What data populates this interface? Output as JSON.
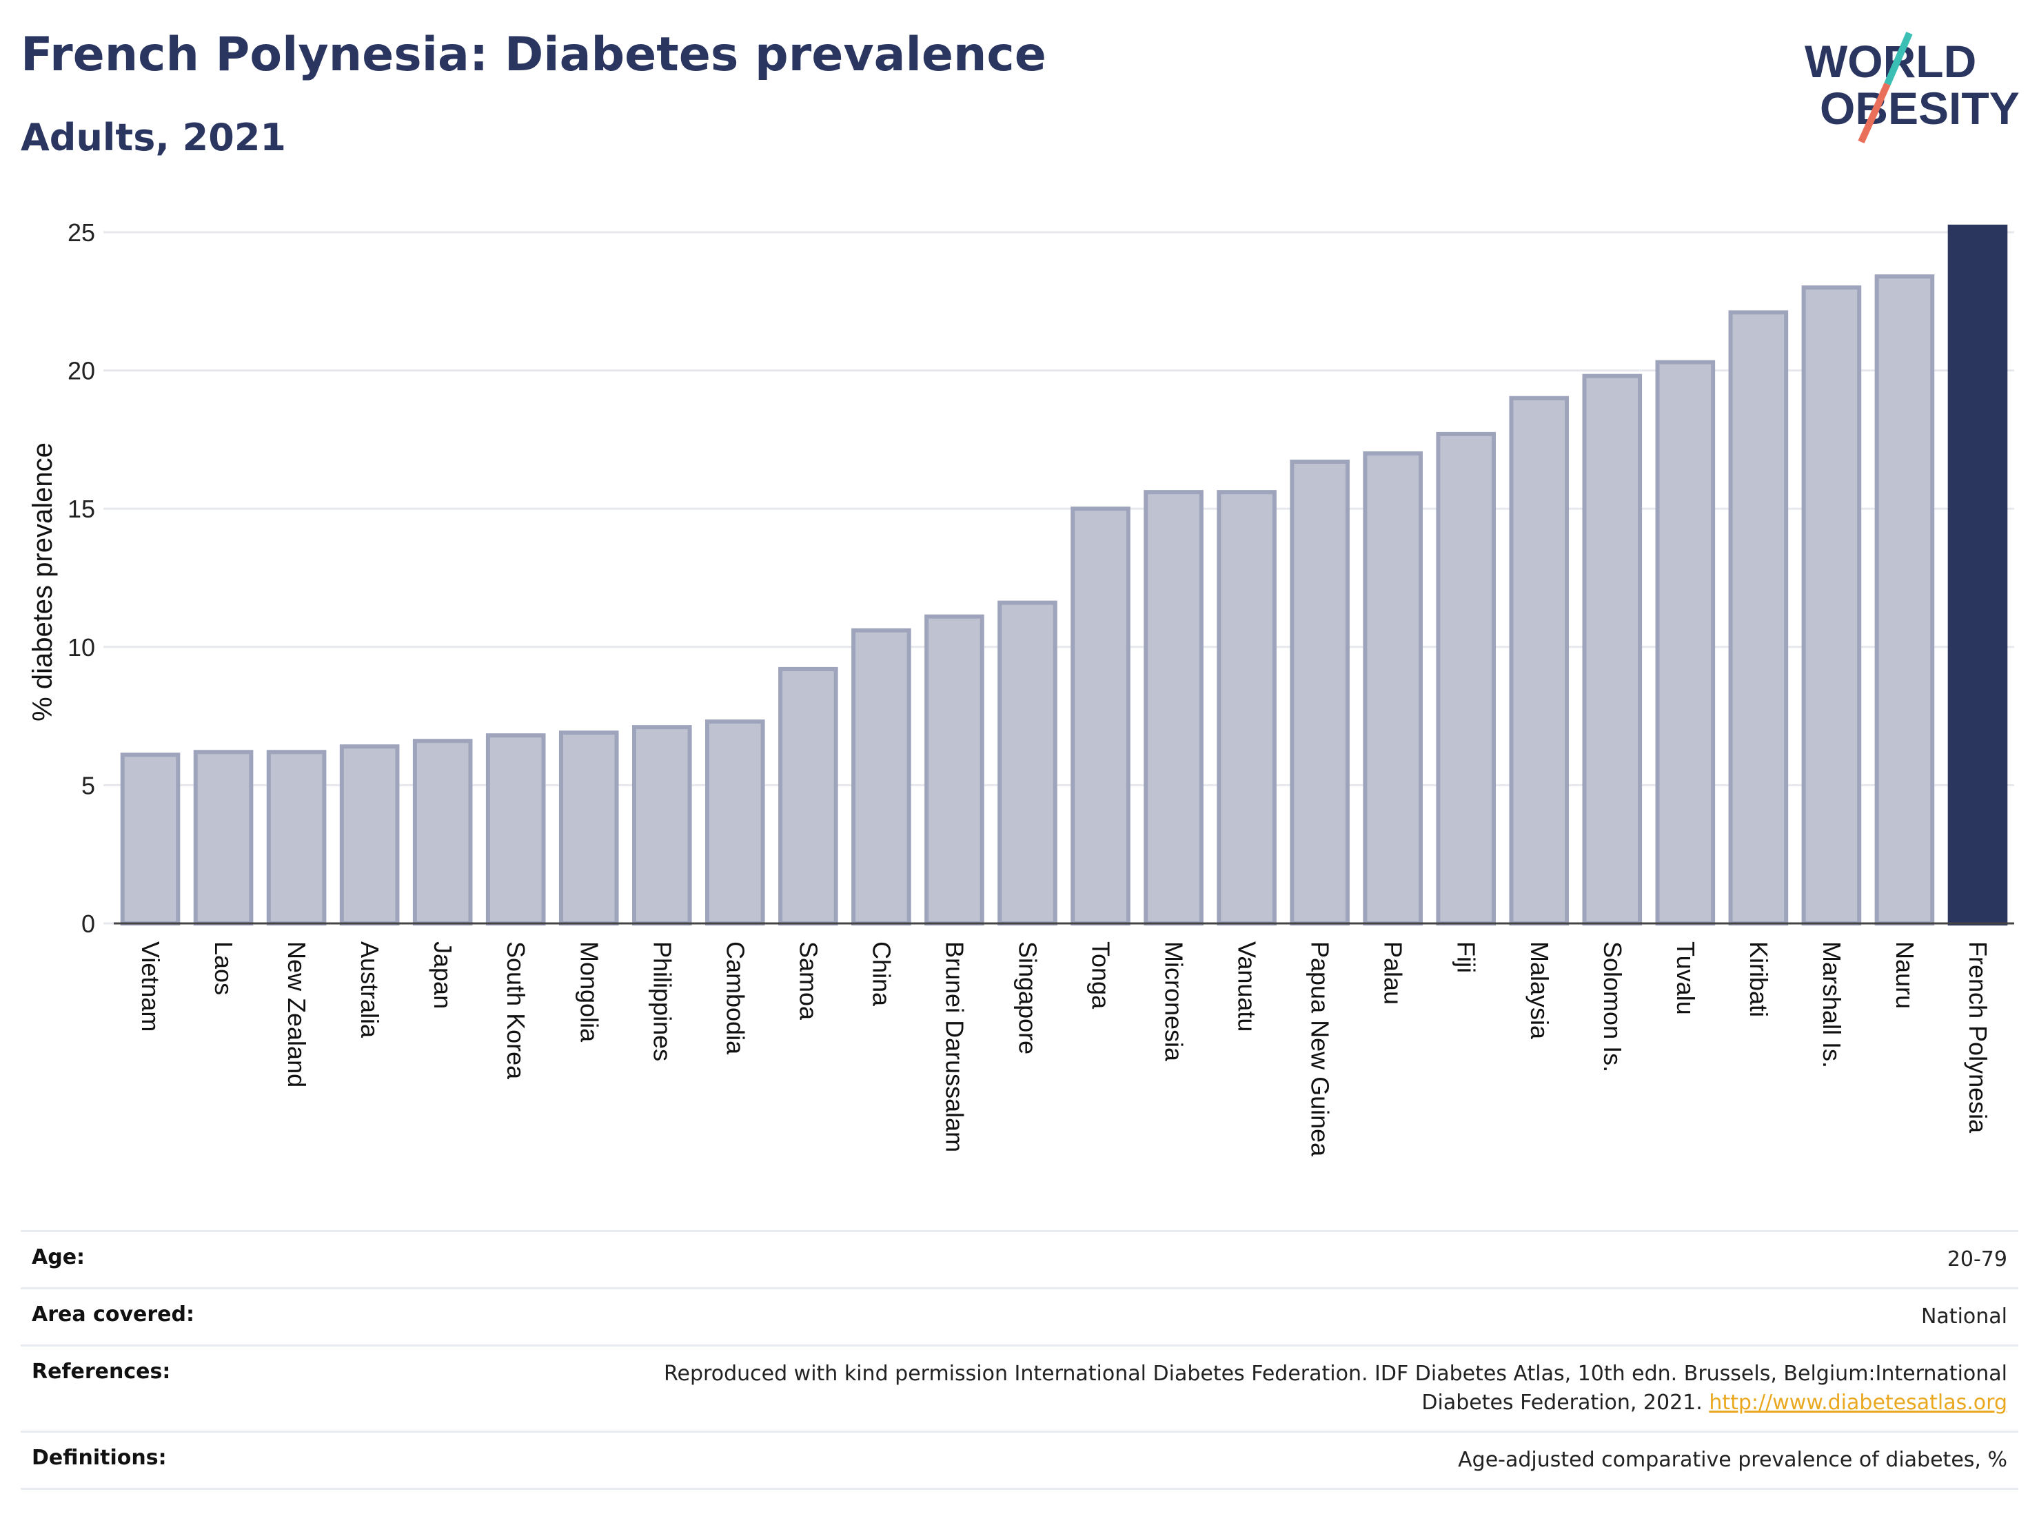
{
  "header": {
    "title": "French Polynesia: Diabetes prevalence",
    "subtitle": "Adults, 2021",
    "logo_line1": "WORLD",
    "logo_line2": "OBESITY"
  },
  "colors": {
    "title": "#2a3560",
    "bar_default": "#bfc3d1",
    "bar_default_stroke": "#9ea4bb",
    "bar_highlight": "#2b365e",
    "grid": "#e6e8ee",
    "link": "#e9a81f",
    "logo_teal": "#3bbfb5",
    "logo_coral": "#ea6f5a"
  },
  "chart_data": {
    "type": "bar",
    "title": "French Polynesia: Diabetes prevalence",
    "subtitle": "Adults, 2021",
    "ylabel": "% diabetes prevalence",
    "xlabel": "",
    "ylim": [
      0,
      25
    ],
    "yticks": [
      0,
      5,
      10,
      15,
      20,
      25
    ],
    "grid": true,
    "highlight": "French Polynesia",
    "categories": [
      "Vietnam",
      "Laos",
      "New Zealand",
      "Australia",
      "Japan",
      "South Korea",
      "Mongolia",
      "Philippines",
      "Cambodia",
      "Samoa",
      "China",
      "Brunei Darussalam",
      "Singapore",
      "Tonga",
      "Micronesia",
      "Vanuatu",
      "Papua New Guinea",
      "Palau",
      "Fiji",
      "Malaysia",
      "Solomon Is.",
      "Tuvalu",
      "Kiribati",
      "Marshall Is.",
      "Nauru",
      "French Polynesia"
    ],
    "values": [
      6.1,
      6.2,
      6.2,
      6.4,
      6.6,
      6.8,
      6.9,
      7.1,
      7.3,
      9.2,
      10.6,
      11.1,
      11.6,
      15.0,
      15.6,
      15.6,
      16.7,
      17.0,
      17.7,
      19.0,
      19.8,
      20.3,
      22.1,
      23.0,
      23.4,
      25.2
    ]
  },
  "meta": [
    {
      "label": "Age:",
      "value": "20-79"
    },
    {
      "label": "Area covered:",
      "value": "National"
    },
    {
      "label": "References:",
      "value": "Reproduced with kind permission International Diabetes Federation.  IDF Diabetes Atlas, 10th edn. Brussels, Belgium:International",
      "value2": "Diabetes Federation, 2021. ",
      "link": "http://www.diabetesatlas.org"
    },
    {
      "label": "Definitions:",
      "value": "Age-adjusted comparative prevalence of diabetes, %"
    }
  ]
}
